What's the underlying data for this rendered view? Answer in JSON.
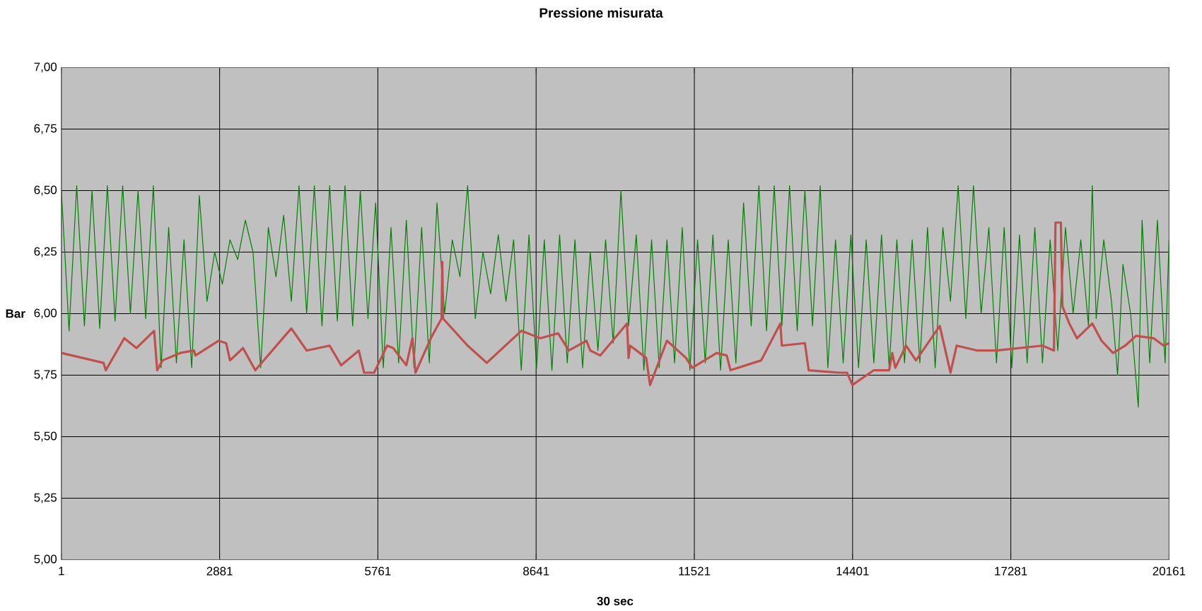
{
  "chart_data": {
    "type": "line",
    "title": "Pressione misurata",
    "xlabel": "30 sec",
    "ylabel": "Bar",
    "xlim": [
      1,
      20161
    ],
    "xticks": [
      1,
      2881,
      5761,
      8641,
      11521,
      14401,
      17281,
      20161
    ],
    "ylim": [
      5,
      7
    ],
    "yticks": [
      {
        "value": 5,
        "label": "5,00"
      },
      {
        "value": 5.25,
        "label": "5,25"
      },
      {
        "value": 5.5,
        "label": "5,50"
      },
      {
        "value": 5.75,
        "label": "5,75"
      },
      {
        "value": 6,
        "label": "6,00"
      },
      {
        "value": 6.25,
        "label": "6,25"
      },
      {
        "value": 6.5,
        "label": "6,50"
      },
      {
        "value": 6.75,
        "label": "6,75"
      },
      {
        "value": 7,
        "label": "7,00"
      }
    ],
    "grid": true,
    "legend": false,
    "marker": "none",
    "line_style": "solid",
    "series": [
      {
        "color": "#008000",
        "x": [
          1,
          141,
          280,
          420,
          559,
          699,
          838,
          978,
          1117,
          1257,
          1396,
          1536,
          1675,
          1815,
          1954,
          2094,
          2233,
          2373,
          2512,
          2652,
          2791,
          2931,
          3070,
          3210,
          3349,
          3489,
          3628,
          3768,
          3907,
          4047,
          4186,
          4326,
          4465,
          4605,
          4744,
          4884,
          5023,
          5163,
          5302,
          5442,
          5581,
          5721,
          5860,
          6000,
          6139,
          6279,
          6418,
          6558,
          6697,
          6837,
          6976,
          7116,
          7255,
          7395,
          7534,
          7674,
          7813,
          7953,
          8092,
          8232,
          8371,
          8511,
          8650,
          8790,
          8929,
          9069,
          9208,
          9348,
          9487,
          9627,
          9766,
          9906,
          10045,
          10185,
          10324,
          10464,
          10603,
          10743,
          10882,
          11022,
          11161,
          11301,
          11440,
          11580,
          11719,
          11859,
          11998,
          12138,
          12277,
          12417,
          12556,
          12696,
          12835,
          12975,
          13114,
          13254,
          13393,
          13533,
          13672,
          13812,
          13951,
          14091,
          14230,
          14370,
          14509,
          14649,
          14788,
          14928,
          15067,
          15207,
          15346,
          15486,
          15625,
          15765,
          15904,
          16044,
          16183,
          16323,
          16462,
          16602,
          16741,
          16881,
          17020,
          17160,
          17299,
          17439,
          17578,
          17718,
          17857,
          17997,
          18136,
          18276,
          18415,
          18555,
          18694,
          18764,
          18834,
          18973,
          19113,
          19224,
          19322,
          19461,
          19601,
          19670,
          19810,
          19949,
          20089,
          20161
        ],
        "values": [
          6.5,
          5.93,
          6.52,
          5.95,
          6.5,
          5.94,
          6.52,
          5.97,
          6.52,
          6.0,
          6.5,
          5.98,
          6.52,
          5.78,
          6.35,
          5.8,
          6.3,
          5.78,
          6.48,
          6.05,
          6.25,
          6.12,
          6.3,
          6.22,
          6.38,
          6.25,
          5.78,
          6.35,
          6.15,
          6.4,
          6.05,
          6.52,
          6.0,
          6.52,
          5.95,
          6.52,
          5.97,
          6.52,
          5.95,
          6.5,
          5.98,
          6.45,
          5.78,
          6.35,
          5.8,
          6.38,
          5.78,
          6.35,
          5.8,
          6.45,
          6.0,
          6.3,
          6.15,
          6.52,
          5.98,
          6.25,
          6.08,
          6.32,
          6.05,
          6.3,
          5.77,
          6.32,
          5.78,
          6.3,
          5.77,
          6.32,
          5.8,
          6.3,
          5.78,
          6.25,
          5.85,
          6.3,
          5.88,
          6.5,
          5.95,
          6.32,
          5.77,
          6.3,
          5.78,
          6.3,
          5.8,
          6.35,
          5.77,
          6.3,
          5.8,
          6.32,
          5.77,
          6.3,
          5.8,
          6.45,
          5.95,
          6.52,
          5.93,
          6.52,
          5.95,
          6.52,
          5.93,
          6.5,
          5.95,
          6.52,
          5.78,
          6.3,
          5.8,
          6.32,
          5.78,
          6.3,
          5.8,
          6.32,
          5.78,
          6.3,
          5.8,
          6.3,
          5.8,
          6.35,
          5.78,
          6.35,
          6.05,
          6.52,
          5.98,
          6.52,
          6.0,
          6.35,
          5.8,
          6.35,
          5.78,
          6.32,
          5.8,
          6.35,
          5.8,
          6.3,
          5.85,
          6.35,
          6.0,
          6.3,
          5.95,
          6.52,
          5.98,
          6.3,
          6.05,
          5.75,
          6.2,
          6.0,
          5.62,
          6.38,
          5.8,
          6.38,
          5.8,
          6.3
        ]
      },
      {
        "color": "#c0504d",
        "x": [
          1,
          768,
          810,
          1145,
          1368,
          1689,
          1745,
          1842,
          2163,
          2414,
          2442,
          2861,
          3000,
          3070,
          3307,
          3530,
          4186,
          4465,
          4883,
          5093,
          5414,
          5511,
          5693,
          5930,
          6041,
          6279,
          6390,
          6446,
          6725,
          6920,
          6934,
          6948,
          7395,
          7743,
          8371,
          8720,
          9041,
          9236,
          9557,
          9627,
          9808,
          10296,
          10324,
          10352,
          10645,
          10715,
          11022,
          11370,
          11482,
          11928,
          12110,
          12179,
          12737,
          13086,
          13114,
          13533,
          13602,
          14160,
          14300,
          14398,
          14788,
          15067,
          15123,
          15179,
          15374,
          15555,
          15988,
          16183,
          16295,
          16672,
          17020,
          17857,
          18066,
          18094,
          18192,
          18220,
          18345,
          18485,
          18764,
          18931,
          19141,
          19364,
          19559,
          19880,
          20061,
          20161
        ],
        "values": [
          5.84,
          5.8,
          5.77,
          5.9,
          5.86,
          5.93,
          5.77,
          5.81,
          5.84,
          5.85,
          5.83,
          5.89,
          5.88,
          5.81,
          5.86,
          5.77,
          5.94,
          5.85,
          5.87,
          5.79,
          5.85,
          5.76,
          5.76,
          5.87,
          5.86,
          5.79,
          5.9,
          5.76,
          5.9,
          5.98,
          6.21,
          5.98,
          5.87,
          5.8,
          5.93,
          5.9,
          5.92,
          5.85,
          5.89,
          5.85,
          5.83,
          5.96,
          5.82,
          5.87,
          5.82,
          5.71,
          5.89,
          5.82,
          5.78,
          5.84,
          5.83,
          5.77,
          5.81,
          5.96,
          5.87,
          5.88,
          5.77,
          5.76,
          5.76,
          5.71,
          5.77,
          5.77,
          5.84,
          5.78,
          5.87,
          5.81,
          5.95,
          5.76,
          5.87,
          5.85,
          5.85,
          5.87,
          5.85,
          6.37,
          6.37,
          6.03,
          5.96,
          5.9,
          5.96,
          5.89,
          5.84,
          5.87,
          5.91,
          5.9,
          5.87,
          5.88
        ]
      }
    ]
  }
}
